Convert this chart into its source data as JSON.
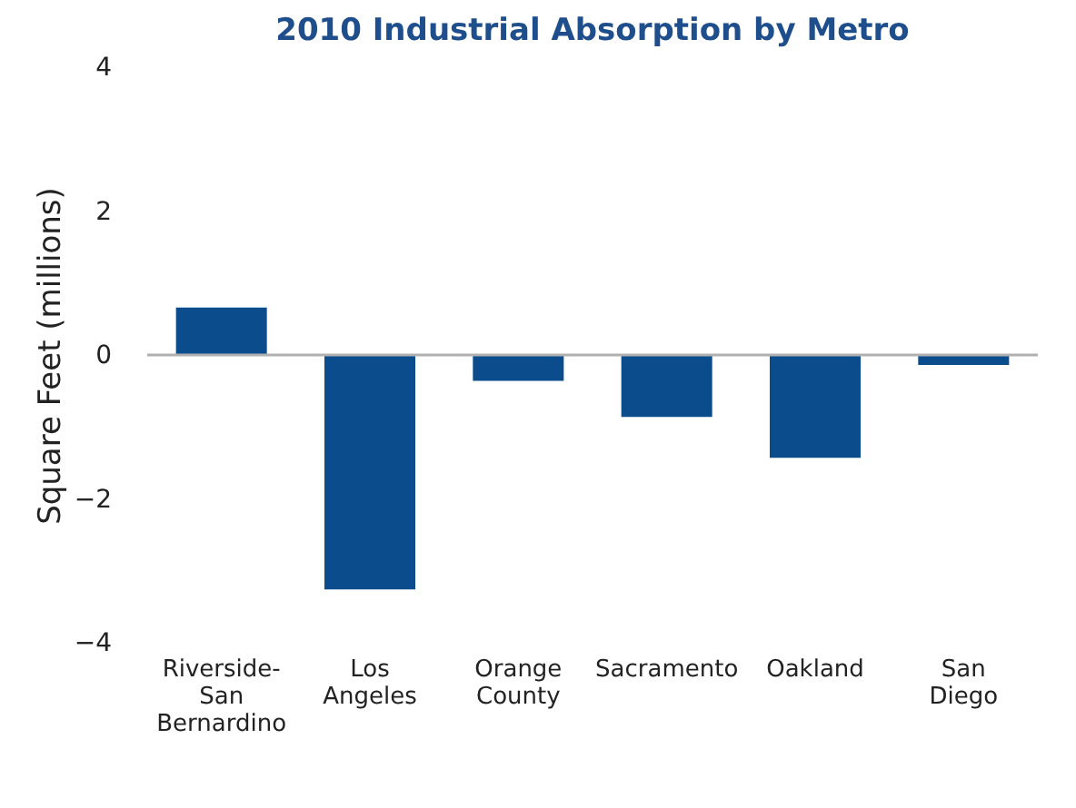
{
  "chart_data": {
    "type": "bar",
    "title": "2010 Industrial Absorption by Metro",
    "ylabel": "Square Feet (millions)",
    "categories": [
      "Riverside-San Bernardino",
      "Los Angeles",
      "Orange County",
      "Sacramento",
      "Oakland",
      "San Diego"
    ],
    "values": [
      0.66,
      -3.26,
      -0.36,
      -0.86,
      -1.43,
      -0.14
    ],
    "color": "#0b4c8c",
    "ylim": [
      -4,
      4
    ],
    "yticks": [
      -4,
      -2,
      0,
      2,
      4
    ],
    "grid": false,
    "ref_lines": [
      {
        "axis": "y",
        "value": 0,
        "color": "#b0b0b0"
      }
    ]
  }
}
